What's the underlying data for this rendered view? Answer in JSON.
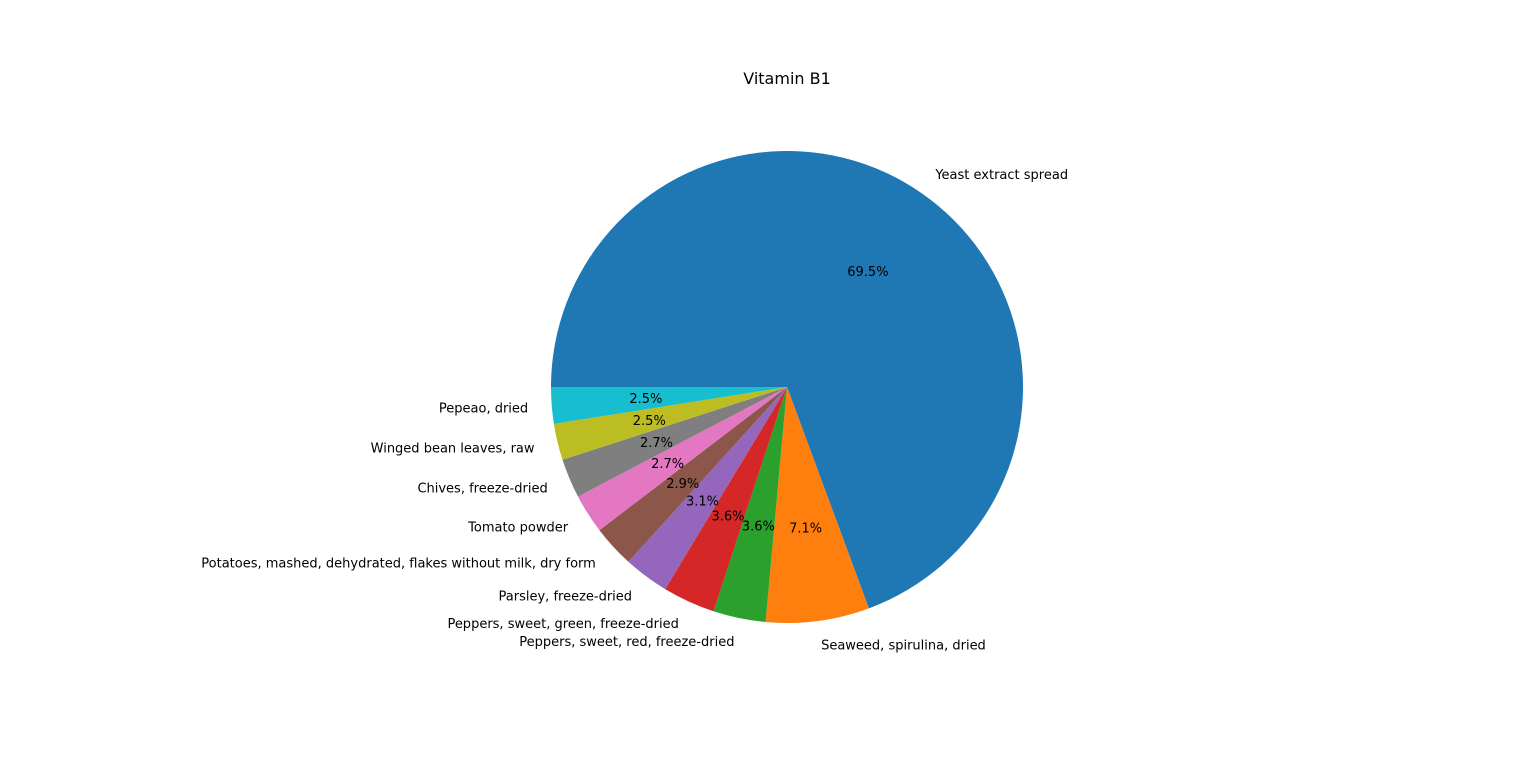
{
  "chart_data": {
    "type": "pie",
    "title": "Vitamin B1",
    "start_angle_deg": 180,
    "direction": "clockwise",
    "slices": [
      {
        "label": "Yeast extract spread",
        "value": 69.5,
        "pct_text": "69.5%",
        "color": "#1f77b4"
      },
      {
        "label": "Seaweed, spirulina, dried",
        "value": 7.1,
        "pct_text": "7.1%",
        "color": "#ff7f0e"
      },
      {
        "label": "Peppers, sweet, red, freeze-dried",
        "value": 3.6,
        "pct_text": "3.6%",
        "color": "#2ca02c"
      },
      {
        "label": "Peppers, sweet, green, freeze-dried",
        "value": 3.6,
        "pct_text": "3.6%",
        "color": "#d62728"
      },
      {
        "label": "Parsley, freeze-dried",
        "value": 3.1,
        "pct_text": "3.1%",
        "color": "#9467bd"
      },
      {
        "label": "Potatoes, mashed, dehydrated, flakes without milk, dry form",
        "value": 2.9,
        "pct_text": "2.9%",
        "color": "#8c564b"
      },
      {
        "label": "Tomato powder",
        "value": 2.7,
        "pct_text": "2.7%",
        "color": "#e377c2"
      },
      {
        "label": "Chives, freeze-dried",
        "value": 2.7,
        "pct_text": "2.7%",
        "color": "#7f7f7f"
      },
      {
        "label": "Winged bean leaves, raw",
        "value": 2.5,
        "pct_text": "2.5%",
        "color": "#bcbd22"
      },
      {
        "label": "Pepeao, dried",
        "value": 2.5,
        "pct_text": "2.5%",
        "color": "#17becf"
      }
    ]
  }
}
